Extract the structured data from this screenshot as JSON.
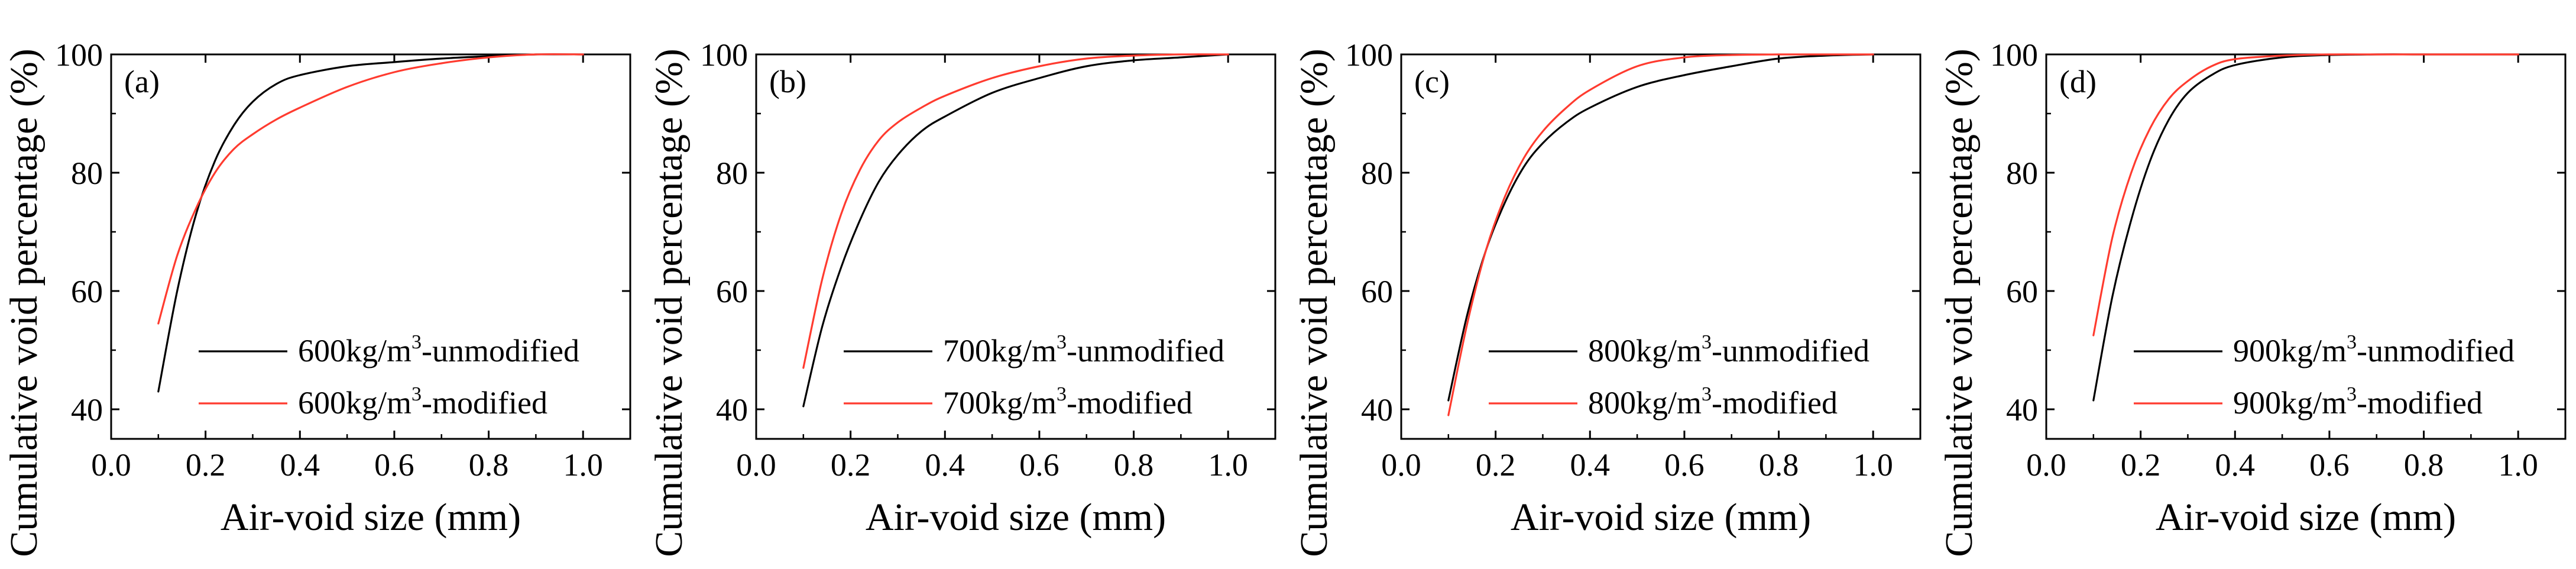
{
  "chart_data": [
    {
      "type": "line",
      "panel_label": "(a)",
      "xlabel": "Air-void size (mm)",
      "ylabel": "Cumulative void percentage (%)",
      "xlim": [
        0.0,
        1.1
      ],
      "ylim": [
        35,
        100
      ],
      "xticks": [
        0.0,
        0.2,
        0.4,
        0.6,
        0.8,
        1.0
      ],
      "xtick_labels": [
        "0.0",
        "0.2",
        "0.4",
        "0.6",
        "0.8",
        "1.0"
      ],
      "yticks": [
        40,
        60,
        80,
        100
      ],
      "ytick_labels": [
        "40",
        "60",
        "80",
        "100"
      ],
      "legend_position": "lower-right",
      "series": [
        {
          "name_pre": "600kg/m",
          "name_sup": "3",
          "name_post": "-unmodified",
          "color": "#000000",
          "x": [
            0.1,
            0.14,
            0.18,
            0.22,
            0.26,
            0.3,
            0.35,
            0.4,
            0.5,
            0.6,
            0.7,
            0.8,
            0.9,
            1.0
          ],
          "y": [
            43,
            60,
            73,
            82,
            88,
            92,
            95,
            96.5,
            98,
            98.7,
            99.3,
            99.7,
            100,
            100
          ]
        },
        {
          "name_pre": "600kg/m",
          "name_sup": "3",
          "name_post": "-modified",
          "color": "#ff3b2f",
          "x": [
            0.1,
            0.14,
            0.18,
            0.22,
            0.26,
            0.3,
            0.35,
            0.4,
            0.5,
            0.6,
            0.7,
            0.8,
            0.9,
            1.0
          ],
          "y": [
            54.5,
            66,
            74,
            80,
            84,
            86.5,
            89,
            91,
            94.5,
            97,
            98.5,
            99.5,
            100,
            100
          ]
        }
      ]
    },
    {
      "type": "line",
      "panel_label": "(b)",
      "xlabel": "Air-void size (mm)",
      "ylabel": "Cumulative void percentage (%)",
      "xlim": [
        0.0,
        1.1
      ],
      "ylim": [
        35,
        100
      ],
      "xticks": [
        0.0,
        0.2,
        0.4,
        0.6,
        0.8,
        1.0
      ],
      "xtick_labels": [
        "0.0",
        "0.2",
        "0.4",
        "0.6",
        "0.8",
        "1.0"
      ],
      "yticks": [
        40,
        60,
        80,
        100
      ],
      "ytick_labels": [
        "40",
        "60",
        "80",
        "100"
      ],
      "legend_position": "lower-right",
      "series": [
        {
          "name_pre": "700kg/m",
          "name_sup": "3",
          "name_post": "-unmodified",
          "color": "#000000",
          "x": [
            0.1,
            0.14,
            0.18,
            0.22,
            0.26,
            0.3,
            0.35,
            0.4,
            0.5,
            0.6,
            0.7,
            0.8,
            0.9,
            1.0
          ],
          "y": [
            40.5,
            54,
            64,
            72,
            78.5,
            83,
            87,
            89.5,
            93.5,
            96,
            98,
            99,
            99.5,
            100
          ]
        },
        {
          "name_pre": "700kg/m",
          "name_sup": "3",
          "name_post": "-modified",
          "color": "#ff3b2f",
          "x": [
            0.1,
            0.14,
            0.18,
            0.22,
            0.26,
            0.3,
            0.35,
            0.4,
            0.5,
            0.6,
            0.7,
            0.8,
            0.9,
            1.0
          ],
          "y": [
            47,
            62,
            73,
            80.5,
            85.5,
            88.5,
            91,
            93,
            96,
            98,
            99.3,
            99.8,
            100,
            100
          ]
        }
      ]
    },
    {
      "type": "line",
      "panel_label": "(c)",
      "xlabel": "Air-void size (mm)",
      "ylabel": "Cumulative void percentage (%)",
      "xlim": [
        0.0,
        1.1
      ],
      "ylim": [
        35,
        100
      ],
      "xticks": [
        0.0,
        0.2,
        0.4,
        0.6,
        0.8,
        1.0
      ],
      "xtick_labels": [
        "0.0",
        "0.2",
        "0.4",
        "0.6",
        "0.8",
        "1.0"
      ],
      "yticks": [
        40,
        60,
        80,
        100
      ],
      "ytick_labels": [
        "40",
        "60",
        "80",
        "100"
      ],
      "legend_position": "lower-right",
      "series": [
        {
          "name_pre": "800kg/m",
          "name_sup": "3",
          "name_post": "-unmodified",
          "color": "#000000",
          "x": [
            0.1,
            0.14,
            0.18,
            0.22,
            0.26,
            0.3,
            0.35,
            0.4,
            0.5,
            0.6,
            0.7,
            0.8,
            0.9,
            1.0
          ],
          "y": [
            41.5,
            56,
            67,
            75,
            81,
            85,
            88.5,
            91,
            94.5,
            96.5,
            98,
            99.3,
            99.8,
            100
          ]
        },
        {
          "name_pre": "800kg/m",
          "name_sup": "3",
          "name_post": "-modified",
          "color": "#ff3b2f",
          "x": [
            0.1,
            0.14,
            0.18,
            0.22,
            0.26,
            0.3,
            0.35,
            0.4,
            0.5,
            0.6,
            0.7,
            0.8,
            0.9,
            1.0
          ],
          "y": [
            39,
            54.5,
            67,
            76,
            82.5,
            87,
            91,
            94,
            98,
            99.5,
            99.9,
            100,
            100,
            100
          ]
        }
      ]
    },
    {
      "type": "line",
      "panel_label": "(d)",
      "xlabel": "Air-void size (mm)",
      "ylabel": "Cumulative void percentage (%)",
      "xlim": [
        0.0,
        1.1
      ],
      "ylim": [
        35,
        100
      ],
      "xticks": [
        0.0,
        0.2,
        0.4,
        0.6,
        0.8,
        1.0
      ],
      "xtick_labels": [
        "0.0",
        "0.2",
        "0.4",
        "0.6",
        "0.8",
        "1.0"
      ],
      "yticks": [
        40,
        60,
        80,
        100
      ],
      "ytick_labels": [
        "40",
        "60",
        "80",
        "100"
      ],
      "legend_position": "lower-right",
      "series": [
        {
          "name_pre": "900kg/m",
          "name_sup": "3",
          "name_post": "-unmodified",
          "color": "#000000",
          "x": [
            0.1,
            0.14,
            0.18,
            0.22,
            0.26,
            0.3,
            0.35,
            0.4,
            0.5,
            0.6,
            0.7,
            0.8,
            0.9,
            1.0
          ],
          "y": [
            41.5,
            59,
            72,
            82,
            89,
            93.5,
            96.5,
            98.2,
            99.5,
            99.9,
            100,
            100,
            100,
            100
          ]
        },
        {
          "name_pre": "900kg/m",
          "name_sup": "3",
          "name_post": "-modified",
          "color": "#ff3b2f",
          "x": [
            0.1,
            0.14,
            0.18,
            0.22,
            0.26,
            0.3,
            0.35,
            0.4,
            0.5,
            0.6,
            0.7,
            0.8,
            0.9,
            1.0
          ],
          "y": [
            52.5,
            69,
            80,
            87.5,
            92.5,
            95.5,
            98,
            99.2,
            99.8,
            100,
            100,
            100,
            100,
            100
          ]
        }
      ]
    }
  ]
}
